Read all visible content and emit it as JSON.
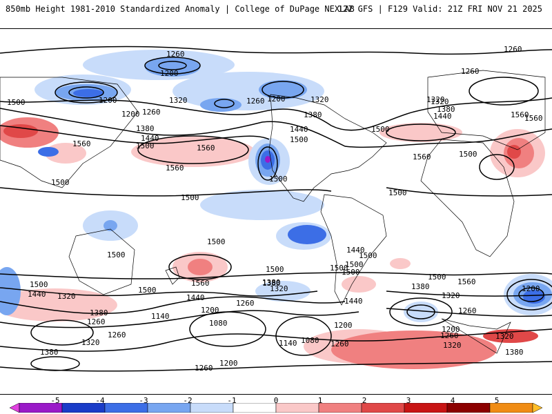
{
  "header": {
    "title_left": "850mb Height 1981-2010 Standardized Anomaly | College of DuPage NEXLAB",
    "title_right": "12Z GFS | F129 Valid: 21Z FRI NOV 21 2025"
  },
  "contour_labels": [
    "1260",
    "1200",
    "1200",
    "1500",
    "1200",
    "1320",
    "1260",
    "1200",
    "1260",
    "1320",
    "1380",
    "1260",
    "1380",
    "1440",
    "1500",
    "1500",
    "1440",
    "1500",
    "1560",
    "1560",
    "1560",
    "1560",
    "1500",
    "1500",
    "1500",
    "1500",
    "1500",
    "1500",
    "1500",
    "1320",
    "1380",
    "1440",
    "1500",
    "1560",
    "1500",
    "1560",
    "1260",
    "1320",
    "1380",
    "1440",
    "1500",
    "1560",
    "1500",
    "1500",
    "1440",
    "1320",
    "1380",
    "1260",
    "1320",
    "1380",
    "1260",
    "1440",
    "1380",
    "1320",
    "1500",
    "1440",
    "1260",
    "1200",
    "1140",
    "1080",
    "1140",
    "1080",
    "1260",
    "1200",
    "1260",
    "1200",
    "1500",
    "1560",
    "1380",
    "1320",
    "1200",
    "1260",
    "1200",
    "1260",
    "1320",
    "1320",
    "1380",
    "1500"
  ],
  "legend": {
    "ticks": [
      "-5",
      "-4",
      "-3",
      "-2",
      "-1",
      "0",
      "1",
      "2",
      "3",
      "4",
      "5"
    ],
    "colors": [
      "#e040e0",
      "#9a1ac8",
      "#1a3cc8",
      "#3c6ee6",
      "#78a6f0",
      "#c8dcfa",
      "#ffffff",
      "#fac8c8",
      "#f08080",
      "#e04848",
      "#c81414",
      "#8c0000",
      "#f08c14",
      "#ffbe28"
    ]
  },
  "anomaly_colors": {
    "neg1": "#c8dcfa",
    "neg2": "#78a6f0",
    "neg3": "#3c6ee6",
    "neg4": "#1a3cc8",
    "neg5": "#9a1ac8",
    "pos1": "#fac8c8",
    "pos2": "#f08080",
    "pos3": "#e04848"
  }
}
